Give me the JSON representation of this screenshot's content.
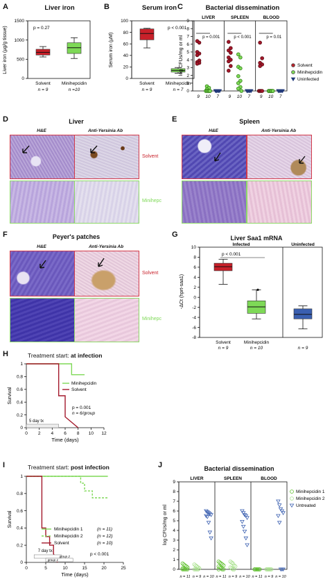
{
  "panels": {
    "A": {
      "letter": "A",
      "title": "Liver iron",
      "ylabel": "Liver iron (µg/g tissue)",
      "p": "p = 0.27",
      "yticks": [
        "0",
        "500",
        "1000",
        "1500"
      ],
      "groups": [
        {
          "label": "Solvent",
          "n": "n = 9",
          "color": "#c8202a"
        },
        {
          "label": "Minihepcidin",
          "n": "n =10",
          "color": "#7ed957"
        }
      ]
    },
    "B": {
      "letter": "B",
      "title": "Serum iron",
      "ylabel": "Serum iron (µM)",
      "p": "p < 0.001",
      "yticks": [
        "0",
        "20",
        "40",
        "60",
        "80",
        "100"
      ],
      "groups": [
        {
          "label": "Solvent",
          "n": "n = 9",
          "color": "#c8202a"
        },
        {
          "label": "Minihepcidin",
          "n": "n = 7",
          "color": "#7ed957"
        }
      ]
    },
    "C": {
      "letter": "C",
      "title": "Bacterial dissemination",
      "ylabel": "log CFUs/mg or ml",
      "organs": [
        "LIVER",
        "SPLEEN",
        "BLOOD"
      ],
      "pvals": [
        "p = 0.001",
        "p < 0.001",
        "p = 0.01"
      ],
      "yticks": [
        "0",
        "1",
        "2",
        "3",
        "4",
        "5",
        "6",
        "7",
        "8",
        "9"
      ],
      "nlabels": [
        "9",
        "10",
        "7",
        "9",
        "10",
        "7",
        "9",
        "10",
        "7"
      ],
      "legend": [
        {
          "label": "Solvent",
          "color": "#b8262e"
        },
        {
          "label": "Minihepcidin",
          "color": "#7ed957"
        },
        {
          "label": "Uninfected",
          "color": "#223a7a"
        }
      ]
    },
    "D": {
      "letter": "D",
      "title": "Liver",
      "hdr1": "H&E",
      "hdr2": "Anti-Yersinia Ab",
      "row1": "Solvent",
      "row2": "Minihepc"
    },
    "E": {
      "letter": "E",
      "title": "Spleen",
      "hdr1": "H&E",
      "hdr2": "Anti-Yersinia Ab"
    },
    "F": {
      "letter": "F",
      "title": "Peyer's patches",
      "hdr1": "H&E",
      "hdr2": "Anti-Yersinia Ab",
      "row1": "Solvent",
      "row2": "Minihepc"
    },
    "G": {
      "letter": "G",
      "title": "Liver Saa1 mRNA",
      "ylabel": "-ΔCt (hprt-saa1)",
      "sub1": "Infected",
      "sub2": "Uninfected",
      "p": "p < 0.001",
      "yticks": [
        "10",
        "8",
        "6",
        "4",
        "2",
        "0",
        "-2",
        "-4",
        "-6",
        "-8"
      ],
      "groups": [
        {
          "label": "Solvent",
          "n": "n = 9"
        },
        {
          "label": "Minihepcidin",
          "n": "n = 10"
        },
        {
          "label": "",
          "n": "n = 9"
        }
      ]
    },
    "H": {
      "letter": "H",
      "title_prefix": "Treatment start: ",
      "title_bold": "at infection",
      "ylabel": "Survival",
      "xlabel": "Time (days)",
      "legend": [
        {
          "label": "Minihepcidin",
          "color": "#7ed957"
        },
        {
          "label": "Solvent",
          "color": "#a3172a"
        }
      ],
      "p": "p = 0.001",
      "n": "n = 6/group",
      "tx": "5  day tx",
      "xticks": [
        "0",
        "2",
        "4",
        "6",
        "8",
        "10",
        "12"
      ],
      "yticks": [
        "0",
        "0.2",
        "0.4",
        "0.6",
        "0.8",
        "1"
      ]
    },
    "I": {
      "letter": "I",
      "title_prefix": "Treatment start: ",
      "title_bold": "post infection",
      "ylabel": "Survival",
      "xlabel": "Time (days)",
      "legend": [
        {
          "label": "Minihepcidin 1",
          "n": "(n = 11)",
          "color": "#7ed957"
        },
        {
          "label": "Minihepcidin 2",
          "n": "(n = 12)",
          "color": "#7ed957"
        },
        {
          "label": "Solvent",
          "n": "(n = 10)",
          "color": "#a3172a"
        }
      ],
      "p": "p < 0.001",
      "tx": "7 day tx",
      "g2": "group 2",
      "g1": "group 1",
      "xticks": [
        "0",
        "5",
        "10",
        "15",
        "20",
        "25"
      ],
      "yticks": [
        "0",
        "0.2",
        "0.4",
        "0.6",
        "0.8",
        "1"
      ]
    },
    "J": {
      "letter": "J",
      "title": "Bacterial dissemination",
      "ylabel": "log CFUs/mg or ml",
      "organs": [
        "LIVER",
        "SPLEEN",
        "BLOOD"
      ],
      "yticks": [
        "0",
        "1",
        "2",
        "3",
        "4",
        "5",
        "6",
        "7",
        "8",
        "9"
      ],
      "nlabels": [
        "n = 11",
        "n = 9",
        "n = 10",
        "n = 11",
        "n = 9",
        "n = 10",
        "n = 11",
        "n = 9",
        "n = 10"
      ],
      "legend": [
        {
          "label": "Minihepcidin 1",
          "color": "#7ed957"
        },
        {
          "label": "Minihepcidin 2",
          "color": "#7ed957"
        },
        {
          "label": "Untreated",
          "color": "#3a5fb0"
        }
      ]
    }
  },
  "chart_data": [
    {
      "type": "box",
      "title": "Liver iron",
      "ylabel": "Liver iron (µg/g tissue)",
      "ylim": [
        0,
        1500
      ],
      "categories": [
        "Solvent",
        "Minihepcidin"
      ],
      "boxes": [
        {
          "min": 560,
          "q1": 610,
          "median": 680,
          "q3": 760,
          "max": 830
        },
        {
          "min": 520,
          "q1": 650,
          "median": 800,
          "q3": 930,
          "max": 1060
        }
      ]
    },
    {
      "type": "box",
      "title": "Serum iron",
      "ylabel": "Serum iron (µM)",
      "ylim": [
        0,
        100
      ],
      "categories": [
        "Solvent",
        "Minihepcidin"
      ],
      "boxes": [
        {
          "min": 53,
          "q1": 67,
          "median": 78,
          "q3": 86,
          "max": 87
        },
        {
          "min": 9,
          "q1": 11,
          "median": 14,
          "q3": 17,
          "max": 19
        }
      ]
    },
    {
      "type": "scatter",
      "title": "Bacterial dissemination",
      "ylabel": "log CFUs/mg or ml",
      "ylim": [
        0,
        9
      ],
      "groups": [
        {
          "organ": "LIVER",
          "series": "Solvent",
          "values": [
            6.4,
            6.2,
            5.0,
            4.8,
            4.6,
            3.9,
            3.7,
            3.6,
            3.5
          ]
        },
        {
          "organ": "LIVER",
          "series": "Minihepcidin",
          "values": [
            0.6,
            0.4,
            0.2,
            0,
            0,
            0,
            0,
            0,
            0,
            0
          ]
        },
        {
          "organ": "LIVER",
          "series": "Uninfected",
          "values": [
            0,
            0,
            0,
            0,
            0,
            0,
            0
          ]
        },
        {
          "organ": "SPLEEN",
          "series": "Solvent",
          "values": [
            6.3,
            5.5,
            5.2,
            4.9,
            4.3,
            4.0,
            3.8,
            3.2,
            2.6
          ]
        },
        {
          "organ": "SPLEEN",
          "series": "Minihepcidin",
          "values": [
            4.7,
            4.3,
            3.1,
            2.9,
            1.9,
            1.3,
            1.0,
            0.5,
            0.3,
            0
          ]
        },
        {
          "organ": "SPLEEN",
          "series": "Uninfected",
          "values": [
            0,
            0,
            0,
            0,
            0,
            0,
            0
          ]
        },
        {
          "organ": "BLOOD",
          "series": "Solvent",
          "values": [
            6.2,
            4.2,
            3.6,
            3.4,
            3.2,
            0,
            0,
            0,
            0
          ]
        },
        {
          "organ": "BLOOD",
          "series": "Minihepcidin",
          "values": [
            0,
            0,
            0,
            0,
            0,
            0,
            0,
            0,
            0,
            0
          ]
        },
        {
          "organ": "BLOOD",
          "series": "Uninfected",
          "values": [
            0,
            0,
            0,
            0,
            0,
            0,
            0
          ]
        }
      ]
    },
    {
      "type": "box",
      "title": "Liver Saa1 mRNA",
      "ylabel": "-ΔCt (hprt-saa1)",
      "ylim": [
        -8,
        10
      ],
      "categories": [
        "Solvent",
        "Minihepcidin",
        ""
      ],
      "boxes": [
        {
          "min": 2.6,
          "q1": 5.3,
          "median": 6.1,
          "q3": 6.8,
          "max": 7.6
        },
        {
          "min": -4.3,
          "q1": -3.2,
          "median": -1.9,
          "q3": -0.7,
          "max": 1.5
        },
        {
          "min": -6.3,
          "q1": -4.3,
          "median": -3.4,
          "q3": -2.3,
          "max": -1.7
        }
      ]
    },
    {
      "type": "line",
      "title": "Treatment start: at infection",
      "xlabel": "Time (days)",
      "ylabel": "Survival",
      "xlim": [
        0,
        12
      ],
      "ylim": [
        0,
        1
      ],
      "series": [
        {
          "name": "Minihepcidin",
          "x": [
            0,
            7,
            7,
            9
          ],
          "y": [
            1,
            1,
            0.83,
            0.83
          ]
        },
        {
          "name": "Solvent",
          "x": [
            0,
            5,
            5,
            6,
            6,
            8
          ],
          "y": [
            1,
            1,
            0.5,
            0.5,
            0.17,
            0
          ]
        }
      ]
    },
    {
      "type": "line",
      "title": "Treatment start: post infection",
      "xlabel": "Time (days)",
      "ylabel": "Survival",
      "xlim": [
        0,
        25
      ],
      "ylim": [
        0,
        1
      ],
      "series": [
        {
          "name": "Minihepcidin 1 (n = 11)",
          "x": [
            0,
            21
          ],
          "y": [
            1,
            1
          ]
        },
        {
          "name": "Minihepcidin 2 (n = 12)",
          "x": [
            0,
            14,
            14,
            15,
            15,
            17,
            17,
            19,
            19,
            21
          ],
          "y": [
            1,
            1,
            0.92,
            0.92,
            0.83,
            0.83,
            0.75,
            0.75,
            0.75,
            0.75
          ]
        },
        {
          "name": "Solvent (n = 10)",
          "x": [
            0,
            4,
            4,
            5,
            5,
            6,
            6,
            7,
            7,
            8
          ],
          "y": [
            1,
            1,
            0.4,
            0.4,
            0.3,
            0.3,
            0.2,
            0.2,
            0.1,
            0
          ]
        }
      ]
    },
    {
      "type": "scatter",
      "title": "Bacterial dissemination",
      "ylabel": "log CFUs/mg or ml",
      "ylim": [
        0,
        9
      ],
      "groups": [
        {
          "organ": "LIVER",
          "series": "Minihepcidin 1",
          "values": [
            0.6,
            0.5,
            0.4,
            0.3,
            0.2,
            0.1,
            0,
            0,
            0,
            0,
            0
          ]
        },
        {
          "organ": "LIVER",
          "series": "Minihepcidin 2",
          "values": [
            0.5,
            0.4,
            0.3,
            0.2,
            0.1,
            0,
            0,
            0,
            0
          ]
        },
        {
          "organ": "LIVER",
          "series": "Untreated",
          "values": [
            6.0,
            5.9,
            5.8,
            5.7,
            5.6,
            5.5,
            5.4,
            4.8,
            3.8,
            3.2
          ]
        },
        {
          "organ": "SPLEEN",
          "series": "Minihepcidin 1",
          "values": [
            0.8,
            0.7,
            0.6,
            0.5,
            0.4,
            0.3,
            0.2,
            0.1,
            0,
            0,
            0
          ]
        },
        {
          "organ": "SPLEEN",
          "series": "Minihepcidin 2",
          "values": [
            0.8,
            0.7,
            0.6,
            0.4,
            0.3,
            0.2,
            0.1,
            0,
            0
          ]
        },
        {
          "organ": "SPLEEN",
          "series": "Untreated",
          "values": [
            6.0,
            5.8,
            5.6,
            5.5,
            5.3,
            4.9,
            4.4,
            3.9,
            3.2,
            2.5
          ]
        },
        {
          "organ": "BLOOD",
          "series": "Minihepcidin 1",
          "values": [
            0,
            0,
            0,
            0,
            0,
            0,
            0,
            0,
            0,
            0,
            0
          ]
        },
        {
          "organ": "BLOOD",
          "series": "Minihepcidin 2",
          "values": [
            0,
            0,
            0,
            0,
            0,
            0,
            0,
            0,
            0
          ]
        },
        {
          "organ": "BLOOD",
          "series": "Untreated",
          "values": [
            7.0,
            6.6,
            6.2,
            6.0,
            5.8,
            5.5,
            4.8,
            0,
            0,
            0
          ]
        }
      ]
    }
  ]
}
